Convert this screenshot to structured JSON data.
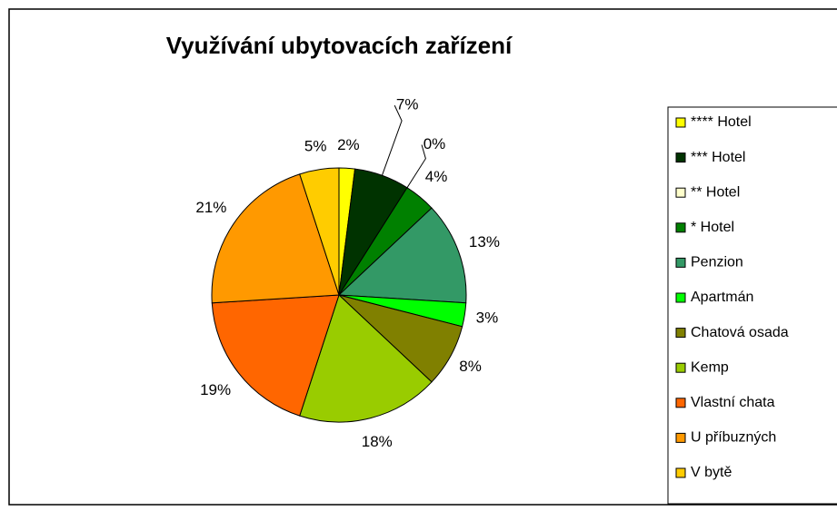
{
  "chart_data": {
    "type": "pie",
    "title": "Využívání ubytovacích zařízení",
    "categories": [
      "**** Hotel",
      "*** Hotel",
      "** Hotel",
      "* Hotel",
      "Penzion",
      "Apartmán",
      "Chatová osada",
      "Kemp",
      "Vlastní chata",
      "U příbuzných",
      "V bytě"
    ],
    "values": [
      2,
      7,
      0,
      4,
      13,
      3,
      8,
      18,
      19,
      21,
      5
    ],
    "value_labels": [
      "2%",
      "7%",
      "0%",
      "4%",
      "13%",
      "3%",
      "8%",
      "18%",
      "19%",
      "21%",
      "5%"
    ],
    "colors": [
      "#ffff00",
      "#003300",
      "#ffffcc",
      "#008000",
      "#339966",
      "#00ff00",
      "#808000",
      "#99cc00",
      "#ff6600",
      "#ff9900",
      "#ffcc00"
    ],
    "legend": "right"
  }
}
